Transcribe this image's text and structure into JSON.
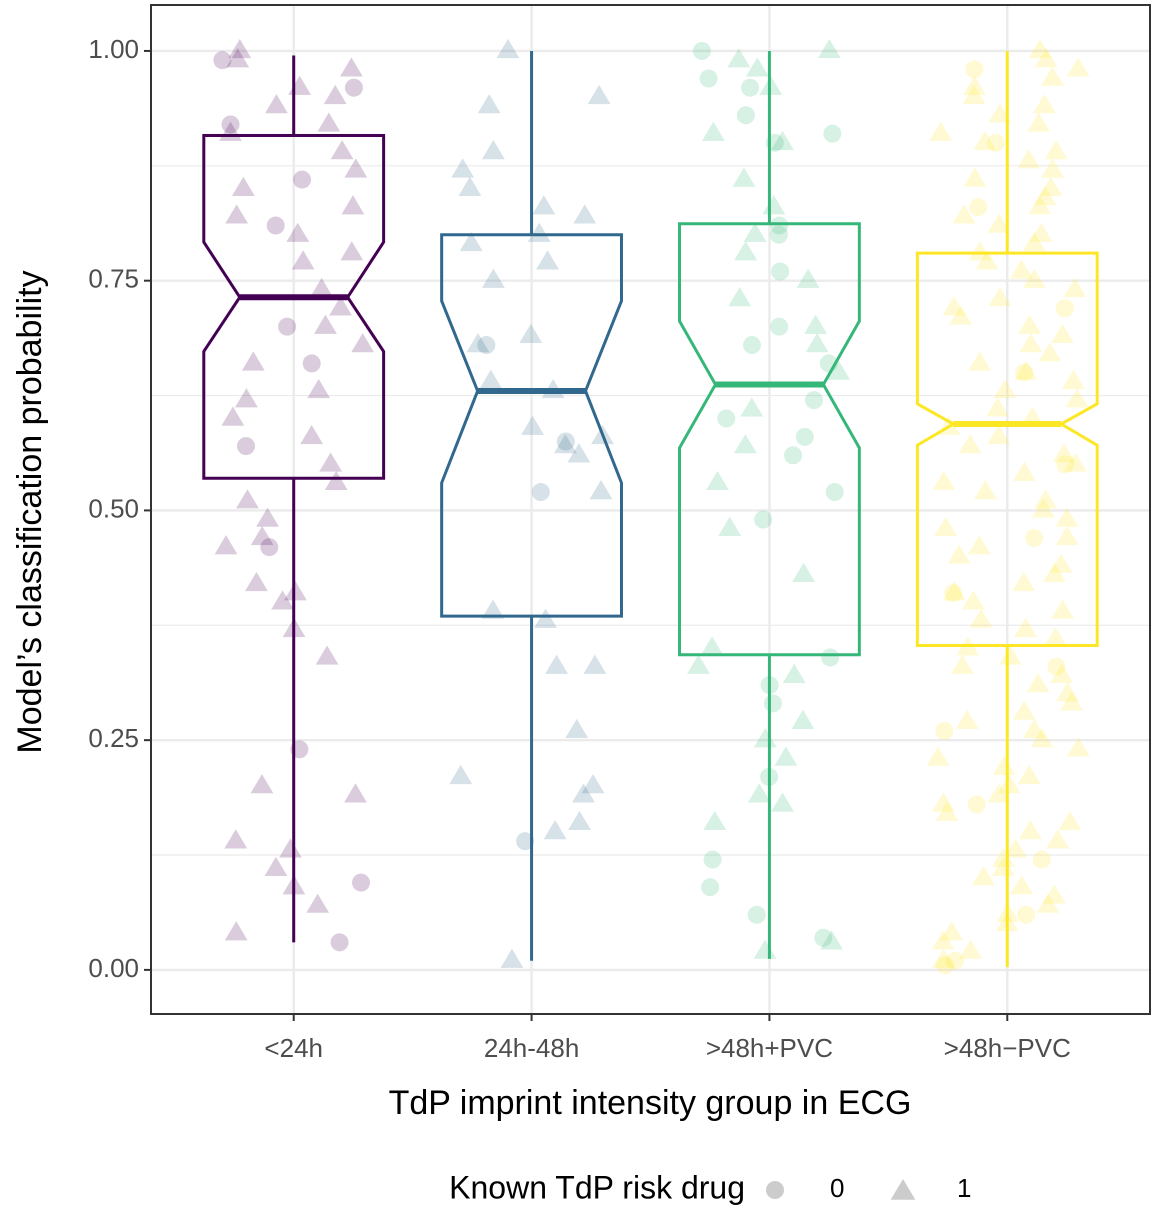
{
  "chart_data": {
    "type": "boxplot",
    "x_label": "TdP imprint intensity group in ECG",
    "y_label": "Model’s classification probability",
    "ylim": [
      -0.048,
      1.05
    ],
    "yticks": [
      {
        "value": 0,
        "label": "0.00"
      },
      {
        "value": 0.25,
        "label": "0.25"
      },
      {
        "value": 0.5,
        "label": "0.50"
      },
      {
        "value": 0.75,
        "label": "0.75"
      },
      {
        "value": 1,
        "label": "1.00"
      }
    ],
    "minor_yticks": [
      0.125,
      0.375,
      0.625,
      0.875
    ],
    "grid": true,
    "legend": {
      "title": "Known TdP risk drug",
      "labels": [
        "0",
        "1"
      ],
      "position": "bottom"
    },
    "groups": [
      {
        "name": "<24h",
        "color": "#440154",
        "whisker_low": 0.03,
        "q1": 0.535,
        "notch_low": 0.673,
        "median": 0.732,
        "notch_high": 0.792,
        "q3": 0.908,
        "whisker_high": 0.995,
        "circles": [
          0.99,
          0.96,
          0.92,
          0.86,
          0.81,
          0.7,
          0.66,
          0.57,
          0.46,
          0.24,
          0.095,
          0.03
        ],
        "triangles": [
          1.0,
          0.99,
          0.98,
          0.96,
          0.95,
          0.94,
          0.92,
          0.91,
          0.89,
          0.87,
          0.85,
          0.83,
          0.82,
          0.8,
          0.78,
          0.77,
          0.74,
          0.72,
          0.7,
          0.68,
          0.66,
          0.63,
          0.62,
          0.6,
          0.58,
          0.55,
          0.53,
          0.51,
          0.49,
          0.47,
          0.46,
          0.42,
          0.41,
          0.4,
          0.37,
          0.34,
          0.2,
          0.19,
          0.14,
          0.13,
          0.11,
          0.09,
          0.07,
          0.04
        ]
      },
      {
        "name": "24h-48h",
        "color": "#31688e",
        "whisker_low": 0.01,
        "q1": 0.385,
        "notch_low": 0.53,
        "median": 0.63,
        "notch_high": 0.728,
        "q3": 0.8,
        "whisker_high": 1.0,
        "circles": [
          0.68,
          0.575,
          0.52,
          0.14
        ],
        "triangles": [
          1.0,
          0.95,
          0.94,
          0.89,
          0.87,
          0.85,
          0.83,
          0.82,
          0.8,
          0.79,
          0.77,
          0.75,
          0.69,
          0.68,
          0.64,
          0.63,
          0.59,
          0.58,
          0.57,
          0.56,
          0.52,
          0.39,
          0.38,
          0.33,
          0.33,
          0.26,
          0.21,
          0.2,
          0.19,
          0.16,
          0.15,
          0.01
        ]
      },
      {
        "name": ">48h+PVC",
        "color": "#35b779",
        "whisker_low": 0.012,
        "q1": 0.343,
        "notch_low": 0.568,
        "median": 0.637,
        "notch_high": 0.706,
        "q3": 0.812,
        "whisker_high": 1.0,
        "circles": [
          1.0,
          0.97,
          0.96,
          0.93,
          0.91,
          0.9,
          0.81,
          0.8,
          0.76,
          0.7,
          0.68,
          0.66,
          0.62,
          0.6,
          0.58,
          0.56,
          0.52,
          0.49,
          0.34,
          0.31,
          0.29,
          0.21,
          0.12,
          0.09,
          0.06,
          0.035
        ],
        "triangles": [
          1.0,
          0.99,
          0.98,
          0.96,
          0.91,
          0.9,
          0.86,
          0.83,
          0.8,
          0.78,
          0.75,
          0.73,
          0.7,
          0.68,
          0.65,
          0.61,
          0.57,
          0.53,
          0.48,
          0.43,
          0.35,
          0.33,
          0.32,
          0.27,
          0.25,
          0.23,
          0.19,
          0.18,
          0.16,
          0.03,
          0.02
        ]
      },
      {
        "name": ">48h−PVC",
        "color": "#fde725",
        "whisker_low": 0.003,
        "q1": 0.353,
        "notch_low": 0.571,
        "median": 0.594,
        "notch_high": 0.616,
        "q3": 0.78,
        "whisker_high": 1.0,
        "circles": [
          0.98,
          0.9,
          0.83,
          0.72,
          0.65,
          0.55,
          0.47,
          0.41,
          0.33,
          0.26,
          0.18,
          0.12,
          0.06,
          0.01,
          0.005
        ],
        "triangles": [
          1.0,
          0.99,
          0.98,
          0.97,
          0.96,
          0.95,
          0.94,
          0.93,
          0.92,
          0.91,
          0.9,
          0.89,
          0.88,
          0.87,
          0.86,
          0.85,
          0.84,
          0.83,
          0.82,
          0.81,
          0.8,
          0.79,
          0.78,
          0.77,
          0.76,
          0.75,
          0.74,
          0.73,
          0.72,
          0.71,
          0.7,
          0.69,
          0.68,
          0.67,
          0.66,
          0.65,
          0.64,
          0.63,
          0.62,
          0.61,
          0.6,
          0.59,
          0.58,
          0.57,
          0.56,
          0.55,
          0.54,
          0.53,
          0.52,
          0.51,
          0.5,
          0.49,
          0.48,
          0.47,
          0.46,
          0.45,
          0.44,
          0.43,
          0.42,
          0.41,
          0.4,
          0.39,
          0.38,
          0.37,
          0.36,
          0.35,
          0.34,
          0.33,
          0.32,
          0.31,
          0.3,
          0.29,
          0.28,
          0.27,
          0.26,
          0.25,
          0.24,
          0.23,
          0.22,
          0.21,
          0.2,
          0.19,
          0.18,
          0.17,
          0.16,
          0.15,
          0.14,
          0.13,
          0.12,
          0.11,
          0.1,
          0.09,
          0.08,
          0.07,
          0.06,
          0.05,
          0.04,
          0.03,
          0.02,
          0.01
        ]
      }
    ]
  }
}
